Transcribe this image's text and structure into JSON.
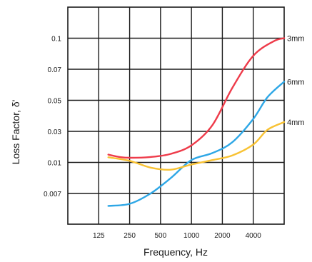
{
  "chart_data": {
    "type": "line",
    "xlabel": "Frequency, Hz",
    "ylabel": "Loss Factor, δ'",
    "x_tick_labels": [
      "125",
      "250",
      "500",
      "1000",
      "2000",
      "4000"
    ],
    "y_tick_labels": [
      "0.1",
      "0.07",
      "0.05",
      "0.03",
      "0.01",
      "0.007"
    ],
    "grid": true,
    "legend": "inline-right",
    "series": [
      {
        "name": "3mm",
        "color": "#ee3b4a",
        "points": [
          [
            155,
            0.015
          ],
          [
            200,
            0.0135
          ],
          [
            250,
            0.013
          ],
          [
            400,
            0.0135
          ],
          [
            630,
            0.0155
          ],
          [
            1000,
            0.021
          ],
          [
            1600,
            0.034
          ],
          [
            2500,
            0.058
          ],
          [
            4000,
            0.083
          ],
          [
            6300,
            0.097
          ],
          [
            8000,
            0.1
          ]
        ]
      },
      {
        "name": "6mm",
        "color": "#2ea7e6",
        "points": [
          [
            155,
            0.0058
          ],
          [
            250,
            0.006
          ],
          [
            400,
            0.007
          ],
          [
            630,
            0.0085
          ],
          [
            1000,
            0.0115
          ],
          [
            1600,
            0.016
          ],
          [
            2500,
            0.023
          ],
          [
            4000,
            0.038
          ],
          [
            5500,
            0.052
          ],
          [
            8000,
            0.062
          ]
        ]
      },
      {
        "name": "4mm",
        "color": "#f8c233",
        "points": [
          [
            155,
            0.0133
          ],
          [
            250,
            0.011
          ],
          [
            400,
            0.0095
          ],
          [
            630,
            0.0093
          ],
          [
            1000,
            0.0098
          ],
          [
            1600,
            0.0115
          ],
          [
            2500,
            0.0145
          ],
          [
            4000,
            0.0215
          ],
          [
            5500,
            0.031
          ],
          [
            8000,
            0.036
          ]
        ]
      }
    ]
  }
}
